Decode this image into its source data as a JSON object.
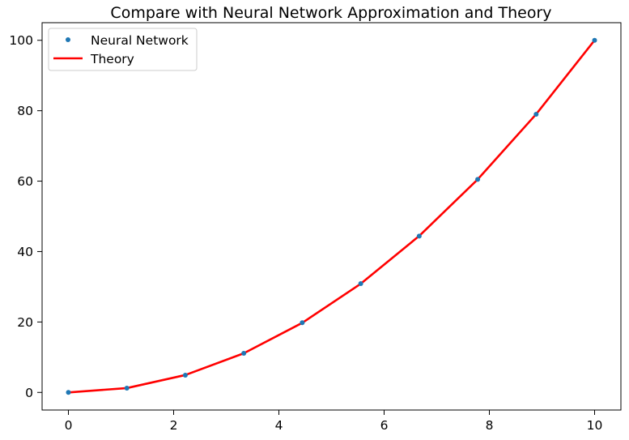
{
  "chart_data": {
    "type": "line",
    "title": "Compare with Neural Network Approximation and Theory",
    "xlabel": "",
    "ylabel": "",
    "xlim": [
      -0.5,
      10.5
    ],
    "ylim": [
      -5,
      105
    ],
    "xticks": [
      0,
      2,
      4,
      6,
      8,
      10
    ],
    "yticks": [
      0,
      20,
      40,
      60,
      80,
      100
    ],
    "grid": false,
    "legend_position": "top-left",
    "series": [
      {
        "name": "Neural Network",
        "style": "scatter",
        "color": "#1f77b4",
        "x": [
          0,
          1.111,
          2.222,
          3.333,
          4.444,
          5.556,
          6.667,
          7.778,
          8.889,
          10
        ],
        "y": [
          0.0,
          1.2,
          4.9,
          11.1,
          19.8,
          30.9,
          44.4,
          60.5,
          79.0,
          100.0
        ]
      },
      {
        "name": "Theory",
        "style": "line",
        "color": "#ff0000",
        "x": [
          0,
          1.111,
          2.222,
          3.333,
          4.444,
          5.556,
          6.667,
          7.778,
          8.889,
          10
        ],
        "y": [
          0.0,
          1.23,
          4.94,
          11.11,
          19.75,
          30.86,
          44.44,
          60.49,
          79.01,
          100.0
        ]
      }
    ]
  }
}
